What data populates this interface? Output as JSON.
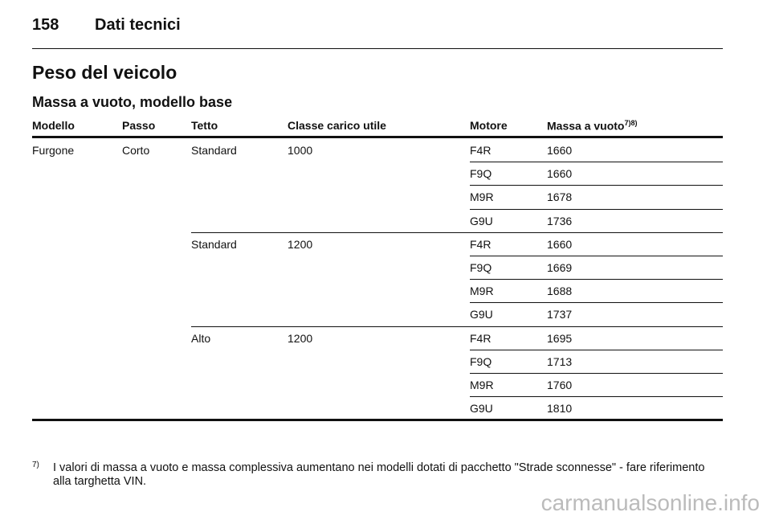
{
  "header": {
    "page_number": "158",
    "title": "Dati tecnici"
  },
  "section": {
    "title": "Peso del veicolo",
    "subtitle": "Massa a vuoto, modello base"
  },
  "table": {
    "columns": [
      "Modello",
      "Passo",
      "Tetto",
      "Classe carico utile",
      "Motore",
      "Massa a vuoto"
    ],
    "column_note": "7)8)",
    "model": "Furgone",
    "wheelbase": "Corto",
    "groups": [
      {
        "roof": "Standard",
        "payload_class": "1000",
        "rows": [
          {
            "engine": "F4R",
            "mass": 1660
          },
          {
            "engine": "F9Q",
            "mass": 1660
          },
          {
            "engine": "M9R",
            "mass": 1678
          },
          {
            "engine": "G9U",
            "mass": 1736
          }
        ]
      },
      {
        "roof": "Standard",
        "payload_class": "1200",
        "rows": [
          {
            "engine": "F4R",
            "mass": 1660
          },
          {
            "engine": "F9Q",
            "mass": 1669
          },
          {
            "engine": "M9R",
            "mass": 1688
          },
          {
            "engine": "G9U",
            "mass": 1737
          }
        ]
      },
      {
        "roof": "Alto",
        "payload_class": "1200",
        "rows": [
          {
            "engine": "F4R",
            "mass": 1695
          },
          {
            "engine": "F9Q",
            "mass": 1713
          },
          {
            "engine": "M9R",
            "mass": 1760
          },
          {
            "engine": "G9U",
            "mass": 1810
          }
        ]
      }
    ]
  },
  "footnote": {
    "marker": "7)",
    "text": "I valori di massa a vuoto e massa complessiva aumentano nei modelli dotati di pacchetto \"Strade sconnesse\" - fare riferimento alla targhetta VIN."
  },
  "watermark": "carmanualsonline.info"
}
